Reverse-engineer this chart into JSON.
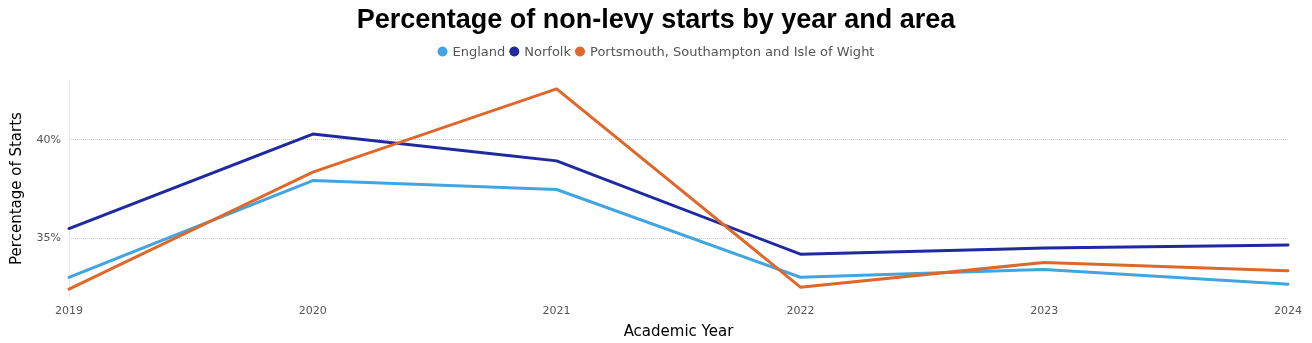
{
  "chart_data": {
    "type": "line",
    "title": "Percentage of non-levy starts by year and area",
    "xlabel": "Academic Year",
    "ylabel": "Percentage of Starts",
    "categories": [
      "2019",
      "2020",
      "2021",
      "2022",
      "2023",
      "2024"
    ],
    "series": [
      {
        "name": "England",
        "color": "#41a5e1",
        "values": [
          33.0,
          37.9,
          37.45,
          33.0,
          33.4,
          32.65
        ]
      },
      {
        "name": "Norfolk",
        "color": "#1f2a9e",
        "values": [
          35.47,
          40.26,
          38.9,
          34.17,
          34.48,
          34.64
        ]
      },
      {
        "name": "Portsmouth, Southampton and Isle of Wight",
        "color": "#e0672a",
        "values": [
          32.4,
          38.33,
          42.55,
          32.5,
          33.75,
          33.33
        ]
      }
    ],
    "ylim": [
      32,
      43
    ],
    "yticks": [
      {
        "value": 35,
        "label": "35%"
      },
      {
        "value": 40,
        "label": "40%"
      }
    ],
    "grid": "y",
    "legend": "top",
    "marker": "none",
    "line_style": "solid"
  }
}
